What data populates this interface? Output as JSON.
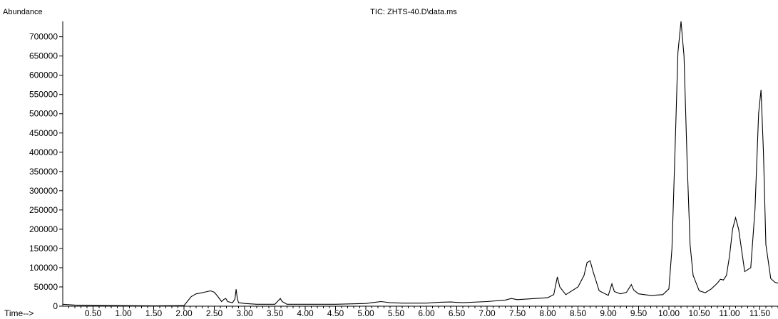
{
  "chart_data": {
    "type": "line",
    "title": "TIC: ZHTS-40.D\\data.ms",
    "ylabel": "Abundance",
    "xlabel": "Time-->",
    "xlim": [
      0.0,
      11.8
    ],
    "ylim": [
      0,
      740000
    ],
    "xticks": [
      0.5,
      1.0,
      1.5,
      2.0,
      2.5,
      3.0,
      3.5,
      4.0,
      4.5,
      5.0,
      5.5,
      6.0,
      6.5,
      7.0,
      7.5,
      8.0,
      8.5,
      9.0,
      9.5,
      10.0,
      10.5,
      11.0,
      11.5
    ],
    "xtick_labels": [
      "0.50",
      "1.00",
      "1.50",
      "2.00",
      "2.50",
      "3.00",
      "3.50",
      "4.00",
      "4.50",
      "5.00",
      "5.50",
      "6.00",
      "6.50",
      "7.00",
      "7.50",
      "8.00",
      "8.50",
      "9.00",
      "9.50",
      "10.00",
      "10.50",
      "11.00",
      "11.50"
    ],
    "yticks": [
      0,
      50000,
      100000,
      150000,
      200000,
      250000,
      300000,
      350000,
      400000,
      450000,
      500000,
      550000,
      600000,
      650000,
      700000
    ],
    "ytick_labels": [
      "0",
      "50000",
      "100000",
      "150000",
      "200000",
      "250000",
      "300000",
      "350000",
      "400000",
      "450000",
      "500000",
      "550000",
      "600000",
      "650000",
      "700000"
    ],
    "grid": false,
    "line_color": "#000000",
    "series": [
      {
        "x": [
          0.0,
          0.2,
          0.5,
          1.0,
          1.5,
          2.0,
          2.07,
          2.12,
          2.2,
          2.3,
          2.38,
          2.44,
          2.5,
          2.56,
          2.62,
          2.66,
          2.69,
          2.72,
          2.8,
          2.84,
          2.86,
          2.88,
          2.9,
          3.0,
          3.2,
          3.5,
          3.56,
          3.59,
          3.62,
          3.7,
          4.0,
          4.5,
          5.0,
          5.15,
          5.25,
          5.4,
          5.6,
          6.0,
          6.2,
          6.4,
          6.6,
          7.0,
          7.3,
          7.4,
          7.5,
          7.8,
          8.0,
          8.1,
          8.16,
          8.2,
          8.3,
          8.5,
          8.6,
          8.65,
          8.7,
          8.75,
          8.85,
          9.0,
          9.06,
          9.1,
          9.2,
          9.3,
          9.38,
          9.42,
          9.5,
          9.7,
          9.9,
          10.0,
          10.05,
          10.1,
          10.15,
          10.2,
          10.25,
          10.3,
          10.35,
          10.4,
          10.5,
          10.6,
          10.7,
          10.8,
          10.85,
          10.9,
          10.95,
          11.0,
          11.05,
          11.1,
          11.15,
          11.25,
          11.35,
          11.42,
          11.48,
          11.52,
          11.56,
          11.6,
          11.68,
          11.75,
          11.8
        ],
        "y": [
          5000,
          3000,
          2000,
          1500,
          1000,
          1500,
          15000,
          25000,
          32000,
          35000,
          38000,
          40000,
          36000,
          25000,
          12000,
          18000,
          20000,
          12000,
          9000,
          18000,
          44000,
          20000,
          9000,
          7000,
          5000,
          5000,
          15000,
          20000,
          12000,
          5000,
          5000,
          5000,
          7000,
          10000,
          12000,
          9000,
          8000,
          8000,
          10000,
          11000,
          9000,
          12000,
          16000,
          20000,
          17000,
          20000,
          22000,
          30000,
          76000,
          50000,
          30000,
          50000,
          80000,
          113000,
          118000,
          90000,
          40000,
          28000,
          58000,
          38000,
          32000,
          36000,
          56000,
          42000,
          32000,
          28000,
          30000,
          45000,
          150000,
          400000,
          660000,
          740000,
          650000,
          380000,
          160000,
          80000,
          40000,
          35000,
          45000,
          60000,
          70000,
          68000,
          80000,
          130000,
          200000,
          230000,
          200000,
          90000,
          100000,
          250000,
          500000,
          562000,
          400000,
          160000,
          72000,
          62000,
          60000
        ]
      }
    ]
  }
}
